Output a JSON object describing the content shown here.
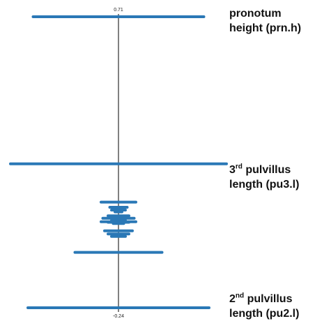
{
  "chart_data": {
    "type": "line",
    "orientation": "vertical",
    "top_value_label": "0.71",
    "bottom_value_label": "-0.24",
    "y_range": [
      -0.24,
      0.71
    ],
    "center_line_color": "#000000",
    "series_color": "#2a78b6",
    "series": [
      {
        "y": 0.71,
        "half_width": 0.49
      },
      {
        "y": 0.23,
        "half_width": 0.62
      },
      {
        "y": 0.105,
        "half_width": 0.1
      },
      {
        "y": 0.088,
        "half_width": 0.05
      },
      {
        "y": 0.079,
        "half_width": 0.04
      },
      {
        "y": 0.073,
        "half_width": 0.02
      },
      {
        "y": 0.06,
        "half_width": 0.06
      },
      {
        "y": 0.052,
        "half_width": 0.09
      },
      {
        "y": 0.048,
        "half_width": 0.03
      },
      {
        "y": 0.045,
        "half_width": 0.04
      },
      {
        "y": 0.041,
        "half_width": 0.1
      },
      {
        "y": 0.039,
        "half_width": 0.06
      },
      {
        "y": 0.035,
        "half_width": 0.03
      },
      {
        "y": 0.011,
        "half_width": 0.08
      },
      {
        "y": 0.001,
        "half_width": 0.06
      },
      {
        "y": -0.007,
        "half_width": 0.04
      },
      {
        "y": -0.059,
        "half_width": 0.25
      },
      {
        "y": -0.24,
        "half_width": 0.52
      }
    ],
    "annotations": [
      {
        "id": "prn-h",
        "line1": "pronotum",
        "line2": "height (prn.h)"
      },
      {
        "id": "pu3-l",
        "ordinal": "3",
        "suffix": "rd",
        "rest": " pulvillus",
        "line2": "length (pu3.l)"
      },
      {
        "id": "pu2-l",
        "ordinal": "2",
        "suffix": "nd",
        "rest": " pulvillus",
        "line2": "length (pu2.l)"
      }
    ]
  }
}
